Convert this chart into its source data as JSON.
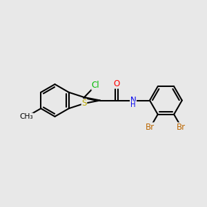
{
  "bg": "#e8e8e8",
  "bond_color": "#000000",
  "bond_lw": 1.5,
  "dbo": 0.055,
  "font_size": 8.5,
  "fig_size": [
    3.0,
    3.0
  ],
  "dpi": 100,
  "colors": {
    "Cl": "#00bb00",
    "S": "#bbaa00",
    "O": "#ff0000",
    "N": "#0000ee",
    "Br": "#bb6600",
    "C": "#000000"
  }
}
